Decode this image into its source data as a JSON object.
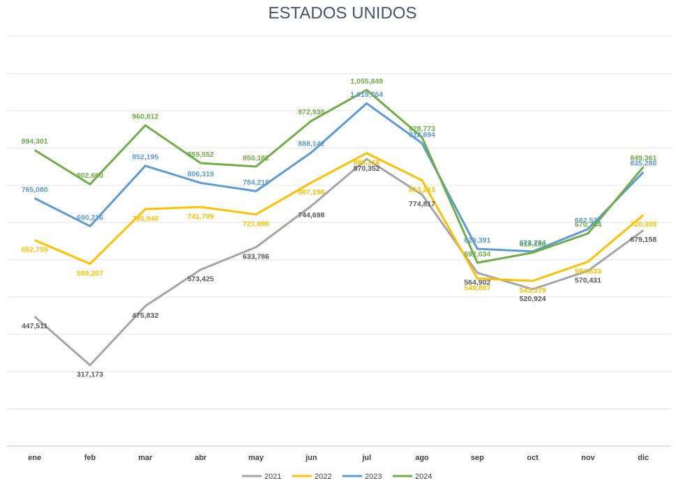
{
  "chart_data": {
    "type": "line",
    "title": "ESTADOS UNIDOS",
    "categories": [
      "ene",
      "feb",
      "mar",
      "abr",
      "may",
      "jun",
      "jul",
      "ago",
      "sep",
      "oct",
      "nov",
      "dic"
    ],
    "ylim": [
      100000,
      1200000
    ],
    "yticks": [
      100000,
      200000,
      300000,
      400000,
      500000,
      600000,
      700000,
      800000,
      900000,
      1000000,
      1100000,
      1200000
    ],
    "grid": true,
    "legend": "bottom",
    "series": [
      {
        "name": "2021",
        "color": "#a5a5a5",
        "values": [
          447511,
          317173,
          475832,
          573425,
          633786,
          744698,
          870352,
          774817,
          564902,
          520924,
          570431,
          679158
        ],
        "value_labels": [
          "447,511",
          "317,173",
          "475,832",
          "573,425",
          "633,786",
          "744,698",
          "870,352",
          "774,817",
          "564,902",
          "520,924",
          "570,431",
          "679,158"
        ]
      },
      {
        "name": "2022",
        "color": "#ffc000",
        "values": [
          652755,
          589207,
          735940,
          741709,
          721690,
          807198,
          886216,
          813213,
          549807,
          543379,
          594833,
          720309
        ],
        "value_labels": [
          "652,755",
          "589,207",
          "735,940",
          "741,709",
          "721,690",
          "807,198",
          "886,216",
          "813,213",
          "549,807",
          "543,379",
          "594,833",
          "720,309"
        ]
      },
      {
        "name": "2023",
        "color": "#5b9bd5",
        "values": [
          765080,
          690216,
          852195,
          806319,
          784219,
          888142,
          1019764,
          912694,
          629391,
          622294,
          682521,
          835280
        ],
        "value_labels": [
          "765,080",
          "690,216",
          "852,195",
          "806,319",
          "784,219",
          "888,142",
          "1,019,764",
          "912,694",
          "629,391",
          "622,294",
          "682,521",
          "835,280"
        ]
      },
      {
        "name": "2024",
        "color": "#70ad47",
        "values": [
          894301,
          802660,
          960812,
          859552,
          850182,
          972930,
          1055849,
          928773,
          592034,
          619186,
          670744,
          849361
        ],
        "value_labels": [
          "894,301",
          "802,660",
          "960,812",
          "859,552",
          "850,182",
          "972,930",
          "1,055,849",
          "928,773",
          "592,034",
          "619,186",
          "670,744",
          "849,361"
        ]
      }
    ]
  }
}
